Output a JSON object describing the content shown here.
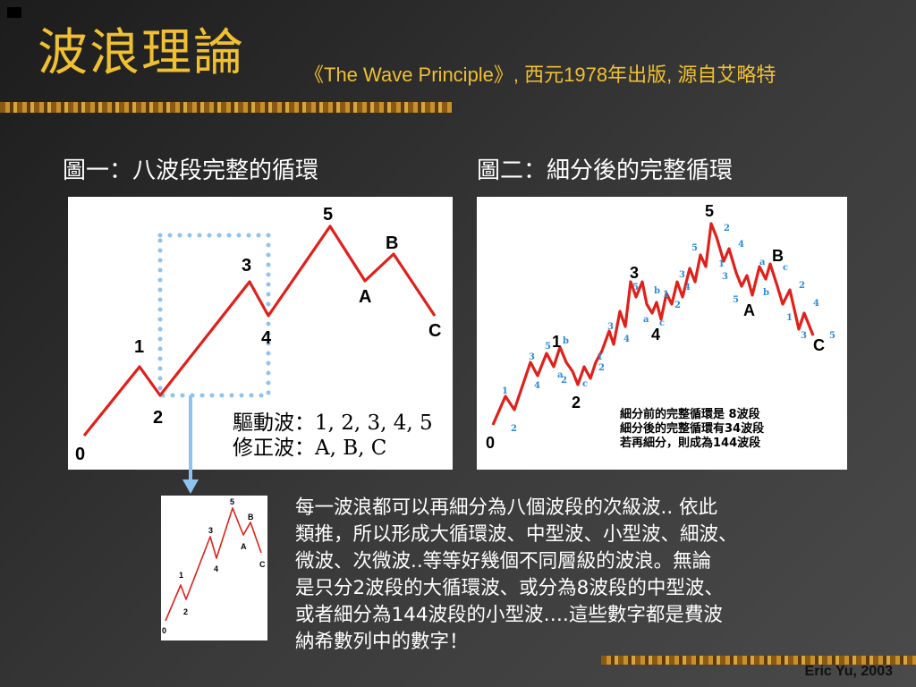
{
  "slide": {
    "title": "波浪理論",
    "subtitle": "《The Wave Principle》, 西元1978年出版, 源自艾略特",
    "credit": "Eric Yu, 2003"
  },
  "figure1": {
    "label": "圖一：八波段完整的循環",
    "point_labels": [
      "0",
      "1",
      "2",
      "3",
      "4",
      "5",
      "A",
      "B",
      "C"
    ],
    "legend": {
      "impulse": "驅動波：1, 2, 3, 4, 5",
      "corrective": "修正波：A, B, C"
    },
    "line_color": "#e0201a",
    "highlight_color": "#8ec3f0"
  },
  "figure2": {
    "label": "圖二：細分後的完整循環",
    "main_labels": [
      "0",
      "1",
      "2",
      "3",
      "4",
      "5",
      "A",
      "B",
      "C"
    ],
    "note": [
      "細分前的完整循環是 8波段",
      "細分後的完整循環有34波段",
      "若再細分，則成為144波段"
    ],
    "sub_label_color": "#2b8bd6"
  },
  "thumbnail": {
    "point_labels": [
      "0",
      "1",
      "2",
      "3",
      "4",
      "5",
      "A",
      "B",
      "C"
    ]
  },
  "paragraph": [
    "每一波浪都可以再細分為八個波段的次級波.. 依此",
    "類推，所以形成大循環波、中型波、小型波、細波、",
    "微波、次微波..等等好幾個不同層級的波浪。無論",
    "是只分2波段的大循環波、或分為8波段的中型波、",
    "或者細分為144波段的小型波….這些數字都是費波",
    "納希數列中的數字！"
  ]
}
